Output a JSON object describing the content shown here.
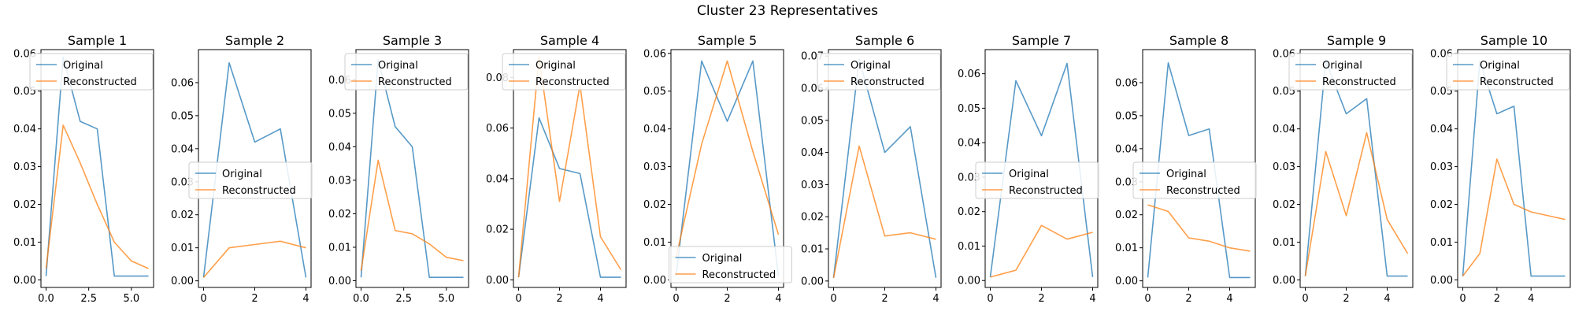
{
  "figure": {
    "title": "Cluster 23 Representatives"
  },
  "colors": {
    "original": "#1f77b4",
    "reconstructed": "#ff7f0e"
  },
  "chart_data": [
    {
      "type": "line",
      "title": "Sample 1",
      "legend_position": "upper-left",
      "xlim": [
        -0.3,
        6.3
      ],
      "ylim": [
        -0.002,
        0.061
      ],
      "xticks": [
        0,
        2.5,
        5
      ],
      "xtick_labels": [
        "0.0",
        "2.5",
        "5.0"
      ],
      "yticks": [
        0,
        0.01,
        0.02,
        0.03,
        0.04,
        0.05,
        0.06
      ],
      "ytick_labels": [
        "0.00",
        "0.01",
        "0.02",
        "0.03",
        "0.04",
        "0.05",
        "0.06"
      ],
      "x": [
        0,
        1,
        2,
        3,
        4,
        5,
        6
      ],
      "series": [
        {
          "name": "Original",
          "values": [
            0.001,
            0.059,
            0.042,
            0.04,
            0.001,
            0.001,
            0.001
          ]
        },
        {
          "name": "Reconstructed",
          "values": [
            0.003,
            0.041,
            0.031,
            0.02,
            0.01,
            0.005,
            0.003
          ]
        }
      ]
    },
    {
      "type": "line",
      "title": "Sample 2",
      "legend_position": "center-left",
      "xlim": [
        -0.2,
        4.2
      ],
      "ylim": [
        -0.002,
        0.07
      ],
      "xticks": [
        0,
        2,
        4
      ],
      "xtick_labels": [
        "0",
        "2",
        "4"
      ],
      "yticks": [
        0,
        0.01,
        0.02,
        0.03,
        0.04,
        0.05,
        0.06
      ],
      "ytick_labels": [
        "0.00",
        "0.01",
        "0.02",
        "0.03",
        "0.04",
        "0.05",
        "0.06"
      ],
      "x": [
        0,
        1,
        2,
        3,
        4
      ],
      "series": [
        {
          "name": "Original",
          "values": [
            0.001,
            0.066,
            0.042,
            0.046,
            0.001
          ]
        },
        {
          "name": "Reconstructed",
          "values": [
            0.001,
            0.01,
            0.011,
            0.012,
            0.01
          ]
        }
      ]
    },
    {
      "type": "line",
      "title": "Sample 3",
      "legend_position": "upper-left",
      "xlim": [
        -0.3,
        6.3
      ],
      "ylim": [
        -0.002,
        0.069
      ],
      "xticks": [
        0,
        2.5,
        5
      ],
      "xtick_labels": [
        "0.0",
        "2.5",
        "5.0"
      ],
      "yticks": [
        0,
        0.01,
        0.02,
        0.03,
        0.04,
        0.05,
        0.06
      ],
      "ytick_labels": [
        "0.00",
        "0.01",
        "0.02",
        "0.03",
        "0.04",
        "0.05",
        "0.06"
      ],
      "x": [
        0,
        1,
        2,
        3,
        4,
        5,
        6
      ],
      "series": [
        {
          "name": "Original",
          "values": [
            0.001,
            0.066,
            0.046,
            0.04,
            0.001,
            0.001,
            0.001
          ]
        },
        {
          "name": "Reconstructed",
          "values": [
            0.003,
            0.036,
            0.015,
            0.014,
            0.011,
            0.007,
            0.006
          ]
        }
      ]
    },
    {
      "type": "line",
      "title": "Sample 4",
      "legend_position": "upper-left",
      "xlim": [
        -0.25,
        5.25
      ],
      "ylim": [
        -0.003,
        0.091
      ],
      "xticks": [
        0,
        2,
        4
      ],
      "xtick_labels": [
        "0",
        "2",
        "4"
      ],
      "yticks": [
        0,
        0.02,
        0.04,
        0.06,
        0.08
      ],
      "ytick_labels": [
        "0.00",
        "0.02",
        "0.04",
        "0.06",
        "0.08"
      ],
      "x": [
        0,
        1,
        2,
        3,
        4,
        5
      ],
      "series": [
        {
          "name": "Original",
          "values": [
            0.001,
            0.064,
            0.044,
            0.042,
            0.001,
            0.001
          ]
        },
        {
          "name": "Reconstructed",
          "values": [
            0.001,
            0.088,
            0.031,
            0.077,
            0.017,
            0.004
          ]
        }
      ]
    },
    {
      "type": "line",
      "title": "Sample 5",
      "legend_position": "lower-center",
      "xlim": [
        -0.2,
        4.2
      ],
      "ylim": [
        -0.002,
        0.061
      ],
      "xticks": [
        0,
        2,
        4
      ],
      "xtick_labels": [
        "0",
        "2",
        "4"
      ],
      "yticks": [
        0,
        0.01,
        0.02,
        0.03,
        0.04,
        0.05,
        0.06
      ],
      "ytick_labels": [
        "0.00",
        "0.01",
        "0.02",
        "0.03",
        "0.04",
        "0.05",
        "0.06"
      ],
      "x": [
        0,
        1,
        2,
        3,
        4
      ],
      "series": [
        {
          "name": "Original",
          "values": [
            0.001,
            0.058,
            0.042,
            0.058,
            0.001
          ]
        },
        {
          "name": "Reconstructed",
          "values": [
            0.006,
            0.036,
            0.058,
            0.034,
            0.012
          ]
        }
      ]
    },
    {
      "type": "line",
      "title": "Sample 6",
      "legend_position": "upper-left",
      "xlim": [
        -0.2,
        4.2
      ],
      "ylim": [
        -0.002,
        0.072
      ],
      "xticks": [
        0,
        2,
        4
      ],
      "xtick_labels": [
        "0",
        "2",
        "4"
      ],
      "yticks": [
        0,
        0.01,
        0.02,
        0.03,
        0.04,
        0.05,
        0.06,
        0.07
      ],
      "ytick_labels": [
        "0.00",
        "0.01",
        "0.02",
        "0.03",
        "0.04",
        "0.05",
        "0.06",
        "0.07"
      ],
      "x": [
        0,
        1,
        2,
        3,
        4
      ],
      "series": [
        {
          "name": "Original",
          "values": [
            0.001,
            0.069,
            0.04,
            0.048,
            0.001
          ]
        },
        {
          "name": "Reconstructed",
          "values": [
            0.001,
            0.042,
            0.014,
            0.015,
            0.013
          ]
        }
      ]
    },
    {
      "type": "line",
      "title": "Sample 7",
      "legend_position": "center-left",
      "xlim": [
        -0.2,
        4.2
      ],
      "ylim": [
        -0.002,
        0.067
      ],
      "xticks": [
        0,
        2,
        4
      ],
      "xtick_labels": [
        "0",
        "2",
        "4"
      ],
      "yticks": [
        0,
        0.01,
        0.02,
        0.03,
        0.04,
        0.05,
        0.06
      ],
      "ytick_labels": [
        "0.00",
        "0.01",
        "0.02",
        "0.03",
        "0.04",
        "0.05",
        "0.06"
      ],
      "x": [
        0,
        1,
        2,
        3,
        4
      ],
      "series": [
        {
          "name": "Original",
          "values": [
            0.001,
            0.058,
            0.042,
            0.063,
            0.001
          ]
        },
        {
          "name": "Reconstructed",
          "values": [
            0.001,
            0.003,
            0.016,
            0.012,
            0.014
          ]
        }
      ]
    },
    {
      "type": "line",
      "title": "Sample 8",
      "legend_position": "center-left",
      "xlim": [
        -0.25,
        5.25
      ],
      "ylim": [
        -0.002,
        0.07
      ],
      "xticks": [
        0,
        2,
        4
      ],
      "xtick_labels": [
        "0",
        "2",
        "4"
      ],
      "yticks": [
        0,
        0.01,
        0.02,
        0.03,
        0.04,
        0.05,
        0.06
      ],
      "ytick_labels": [
        "0.00",
        "0.01",
        "0.02",
        "0.03",
        "0.04",
        "0.05",
        "0.06"
      ],
      "x": [
        0,
        1,
        2,
        3,
        4,
        5
      ],
      "series": [
        {
          "name": "Original",
          "values": [
            0.001,
            0.066,
            0.044,
            0.046,
            0.001,
            0.001
          ]
        },
        {
          "name": "Reconstructed",
          "values": [
            0.023,
            0.021,
            0.013,
            0.012,
            0.01,
            0.009
          ]
        }
      ]
    },
    {
      "type": "line",
      "title": "Sample 9",
      "legend_position": "upper-left",
      "xlim": [
        -0.25,
        5.25
      ],
      "ylim": [
        -0.002,
        0.061
      ],
      "xticks": [
        0,
        2,
        4
      ],
      "xtick_labels": [
        "0",
        "2",
        "4"
      ],
      "yticks": [
        0,
        0.01,
        0.02,
        0.03,
        0.04,
        0.05,
        0.06
      ],
      "ytick_labels": [
        "0.00",
        "0.01",
        "0.02",
        "0.03",
        "0.04",
        "0.05",
        "0.06"
      ],
      "x": [
        0,
        1,
        2,
        3,
        4,
        5
      ],
      "series": [
        {
          "name": "Original",
          "values": [
            0.001,
            0.058,
            0.044,
            0.048,
            0.001,
            0.001
          ]
        },
        {
          "name": "Reconstructed",
          "values": [
            0.001,
            0.034,
            0.017,
            0.039,
            0.016,
            0.007
          ]
        }
      ]
    },
    {
      "type": "line",
      "title": "Sample 10",
      "legend_position": "upper-left",
      "xlim": [
        -0.3,
        6.3
      ],
      "ylim": [
        -0.002,
        0.061
      ],
      "xticks": [
        0,
        2,
        4
      ],
      "xtick_labels": [
        "0",
        "2",
        "4"
      ],
      "yticks": [
        0,
        0.01,
        0.02,
        0.03,
        0.04,
        0.05,
        0.06
      ],
      "ytick_labels": [
        "0.00",
        "0.01",
        "0.02",
        "0.03",
        "0.04",
        "0.05",
        "0.06"
      ],
      "x": [
        0,
        1,
        2,
        3,
        4,
        5,
        6
      ],
      "series": [
        {
          "name": "Original",
          "values": [
            0.001,
            0.058,
            0.044,
            0.046,
            0.001,
            0.001,
            0.001
          ]
        },
        {
          "name": "Reconstructed",
          "values": [
            0.001,
            0.007,
            0.032,
            0.02,
            0.018,
            0.017,
            0.016
          ]
        }
      ]
    }
  ]
}
